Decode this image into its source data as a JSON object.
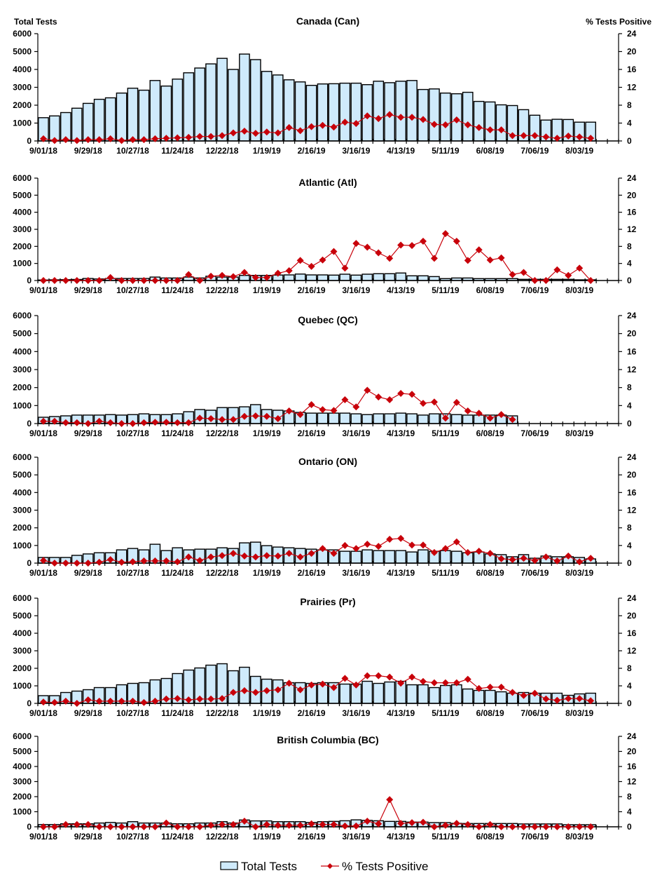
{
  "chart_data": [
    {
      "type": "bar+line",
      "title": "Canada (Can)",
      "ylabel_left": "Total Tests",
      "ylabel_right": "% Tests Positive",
      "ylim_left": [
        0,
        6000
      ],
      "ylim_right": [
        0,
        24
      ],
      "y_ticks_left": [
        "0",
        "1000",
        "2000",
        "3000",
        "4000",
        "5000",
        "6000"
      ],
      "y_ticks_right": [
        "0",
        "4",
        "8",
        "12",
        "16",
        "20",
        "24"
      ],
      "x_tick_labels": [
        "9/01/18",
        "9/29/18",
        "10/27/18",
        "11/24/18",
        "12/22/18",
        "1/19/19",
        "2/16/19",
        "3/16/19",
        "4/13/19",
        "5/11/19",
        "6/08/19",
        "7/06/19",
        "8/03/19"
      ],
      "series": [
        {
          "name": "Total Tests",
          "type": "bar",
          "values": [
            1300,
            1400,
            1590,
            1830,
            2100,
            2330,
            2410,
            2680,
            2950,
            2840,
            3380,
            3070,
            3460,
            3810,
            4080,
            4310,
            4620,
            4000,
            4860,
            4550,
            3890,
            3690,
            3420,
            3300,
            3110,
            3190,
            3200,
            3230,
            3230,
            3150,
            3340,
            3260,
            3340,
            3380,
            2880,
            2910,
            2680,
            2640,
            2720,
            2210,
            2180,
            2020,
            1980,
            1750,
            1440,
            1170,
            1210,
            1200,
            1050,
            1050
          ]
        },
        {
          "name": "% Tests Positive",
          "type": "line",
          "values": [
            0.5,
            0.1,
            0.3,
            0.1,
            0.3,
            0.3,
            0.5,
            0.1,
            0.3,
            0.3,
            0.5,
            0.6,
            0.7,
            0.8,
            1.0,
            1.0,
            1.2,
            1.8,
            2.2,
            1.7,
            2.0,
            1.8,
            3.0,
            2.3,
            3.2,
            3.5,
            3.1,
            4.2,
            3.9,
            5.6,
            5.0,
            5.9,
            5.3,
            5.3,
            4.8,
            3.7,
            3.6,
            4.7,
            3.6,
            3.0,
            2.5,
            2.5,
            1.2,
            1.2,
            1.2,
            0.9,
            0.6,
            1.1,
            0.9,
            0.6
          ]
        }
      ]
    },
    {
      "type": "bar+line",
      "title": "Atlantic (Atl)",
      "ylim_left": [
        0,
        6000
      ],
      "ylim_right": [
        0,
        24
      ],
      "y_ticks_left": [
        "0",
        "1000",
        "2000",
        "3000",
        "4000",
        "5000",
        "6000"
      ],
      "y_ticks_right": [
        "0",
        "4",
        "8",
        "12",
        "16",
        "20",
        "24"
      ],
      "x_tick_labels": [
        "9/01/18",
        "9/29/18",
        "10/27/18",
        "11/24/18",
        "12/22/18",
        "1/19/19",
        "2/16/19",
        "3/16/19",
        "4/13/19",
        "5/11/19",
        "6/08/19",
        "7/06/19",
        "8/03/19"
      ],
      "series": [
        {
          "name": "Total Tests",
          "type": "bar",
          "values": [
            30,
            40,
            50,
            60,
            120,
            90,
            120,
            120,
            120,
            120,
            200,
            150,
            150,
            200,
            150,
            250,
            200,
            200,
            300,
            300,
            300,
            320,
            330,
            380,
            330,
            330,
            315,
            370,
            315,
            370,
            400,
            400,
            440,
            275,
            275,
            230,
            110,
            150,
            150,
            110,
            110,
            110,
            110,
            70,
            70,
            70,
            70,
            70,
            40,
            40
          ]
        },
        {
          "name": "% Tests Positive",
          "type": "line",
          "values": [
            0,
            0,
            0,
            0,
            0,
            0,
            0.7,
            0,
            0,
            0,
            0,
            0,
            0,
            1.4,
            0,
            1.0,
            1.2,
            0.9,
            1.9,
            0.7,
            0.7,
            1.7,
            2.3,
            4.7,
            3.3,
            4.8,
            6.8,
            2.9,
            8.7,
            7.8,
            6.5,
            5.2,
            8.3,
            8.2,
            9.2,
            5.2,
            11.0,
            9.2,
            4.7,
            7.2,
            4.8,
            5.3,
            1.4,
            1.9,
            0,
            0,
            2.5,
            1.2,
            2.9,
            0
          ]
        }
      ]
    },
    {
      "type": "bar+line",
      "title": "Quebec (QC)",
      "ylim_left": [
        0,
        6000
      ],
      "ylim_right": [
        0,
        24
      ],
      "y_ticks_left": [
        "0",
        "1000",
        "2000",
        "3000",
        "4000",
        "5000",
        "6000"
      ],
      "y_ticks_right": [
        "0",
        "4",
        "8",
        "12",
        "16",
        "20",
        "24"
      ],
      "x_tick_labels": [
        "9/01/18",
        "9/29/18",
        "10/27/18",
        "11/24/18",
        "12/22/18",
        "1/19/19",
        "2/16/19",
        "3/16/19",
        "4/13/19",
        "5/11/19",
        "6/08/19",
        "7/06/19",
        "8/03/19"
      ],
      "series": [
        {
          "name": "Total Tests",
          "type": "bar",
          "values": [
            350,
            390,
            430,
            470,
            470,
            470,
            500,
            470,
            500,
            540,
            500,
            500,
            540,
            660,
            780,
            740,
            890,
            890,
            930,
            1050,
            780,
            740,
            700,
            620,
            580,
            580,
            580,
            580,
            540,
            500,
            540,
            540,
            580,
            540,
            470,
            540,
            540,
            500,
            470,
            470,
            470,
            470,
            430,
            null,
            null,
            null,
            null,
            null,
            null,
            null
          ]
        },
        {
          "name": "% Tests Positive",
          "type": "line",
          "values": [
            0.5,
            0.5,
            0.2,
            0.2,
            0,
            0.5,
            0.2,
            0,
            0,
            0.2,
            0.3,
            0.3,
            0.2,
            0.2,
            1.2,
            1.1,
            0.9,
            0.9,
            1.6,
            1.7,
            1.6,
            1.1,
            2.8,
            2.0,
            4.2,
            3.1,
            2.9,
            5.3,
            3.7,
            7.4,
            5.9,
            5.3,
            6.7,
            6.5,
            4.5,
            4.8,
            1.2,
            4.7,
            2.8,
            2.3,
            1.2,
            2.0,
            0.9,
            null,
            null,
            null,
            null,
            null,
            null,
            null
          ]
        }
      ]
    },
    {
      "type": "bar+line",
      "title": "Ontario (ON)",
      "ylim_left": [
        0,
        6000
      ],
      "ylim_right": [
        0,
        24
      ],
      "y_ticks_left": [
        "0",
        "1000",
        "2000",
        "3000",
        "4000",
        "5000",
        "6000"
      ],
      "y_ticks_right": [
        "0",
        "4",
        "8",
        "12",
        "16",
        "20",
        "24"
      ],
      "x_tick_labels": [
        "9/01/18",
        "9/29/18",
        "10/27/18",
        "11/24/18",
        "12/22/18",
        "1/19/19",
        "2/16/19",
        "3/16/19",
        "4/13/19",
        "5/11/19",
        "6/08/19",
        "7/06/19",
        "8/03/19"
      ],
      "series": [
        {
          "name": "Total Tests",
          "type": "bar",
          "values": [
            320,
            320,
            320,
            440,
            520,
            590,
            590,
            750,
            830,
            750,
            1070,
            710,
            870,
            750,
            790,
            790,
            870,
            830,
            1150,
            1190,
            990,
            910,
            870,
            830,
            790,
            750,
            750,
            670,
            670,
            750,
            710,
            710,
            710,
            630,
            750,
            670,
            710,
            670,
            590,
            630,
            520,
            480,
            360,
            480,
            280,
            400,
            360,
            360,
            320,
            240
          ]
        },
        {
          "name": "% Tests Positive",
          "type": "line",
          "values": [
            0.6,
            0,
            0,
            0,
            0,
            0.2,
            0.8,
            0.2,
            0.3,
            0.5,
            0.5,
            0.5,
            0.3,
            1.4,
            0.6,
            1.4,
            1.7,
            2.2,
            1.6,
            1.4,
            1.7,
            1.6,
            2.2,
            1.4,
            2.2,
            3.3,
            2.2,
            4.0,
            3.3,
            4.3,
            3.8,
            5.4,
            5.6,
            4.1,
            4.1,
            2.4,
            3.3,
            4.8,
            2.4,
            2.7,
            2.2,
            1.0,
            0.8,
            1.1,
            0.6,
            1.4,
            0.5,
            1.6,
            0.3,
            1.1
          ]
        }
      ]
    },
    {
      "type": "bar+line",
      "title": "Prairies (Pr)",
      "ylim_left": [
        0,
        6000
      ],
      "ylim_right": [
        0,
        24
      ],
      "y_ticks_left": [
        "0",
        "1000",
        "2000",
        "3000",
        "4000",
        "5000",
        "6000"
      ],
      "y_ticks_right": [
        "0",
        "4",
        "8",
        "12",
        "16",
        "20",
        "24"
      ],
      "x_tick_labels": [
        "9/01/18",
        "9/29/18",
        "10/27/18",
        "11/24/18",
        "12/22/18",
        "1/19/19",
        "2/16/19",
        "3/16/19",
        "4/13/19",
        "5/11/19",
        "6/08/19",
        "7/06/19",
        "8/03/19"
      ],
      "series": [
        {
          "name": "Total Tests",
          "type": "bar",
          "values": [
            440,
            440,
            620,
            700,
            780,
            900,
            900,
            1060,
            1140,
            1180,
            1340,
            1420,
            1700,
            1900,
            2020,
            2180,
            2260,
            1860,
            2060,
            1540,
            1380,
            1340,
            1180,
            1180,
            1140,
            1180,
            1180,
            1100,
            1100,
            1260,
            1140,
            1220,
            1260,
            1060,
            1060,
            900,
            1020,
            1060,
            820,
            740,
            740,
            660,
            580,
            620,
            580,
            580,
            580,
            460,
            540,
            580
          ]
        },
        {
          "name": "% Tests Positive",
          "type": "line",
          "values": [
            0.3,
            0.2,
            0.5,
            0,
            0.8,
            0.5,
            0.5,
            0.5,
            0.5,
            0.2,
            0.5,
            1.0,
            1.1,
            0.8,
            1.0,
            1.0,
            1.1,
            2.5,
            2.9,
            2.5,
            2.9,
            3.1,
            4.6,
            3.1,
            4.2,
            4.4,
            3.6,
            5.7,
            4.2,
            6.3,
            6.3,
            6.0,
            4.6,
            6.0,
            5.0,
            4.7,
            4.7,
            4.7,
            5.5,
            3.4,
            3.7,
            3.7,
            2.5,
            1.8,
            2.3,
            1.0,
            0.7,
            1.1,
            1.1,
            0.6
          ]
        }
      ]
    },
    {
      "type": "bar+line",
      "title": "British Columbia (BC)",
      "ylim_left": [
        0,
        6000
      ],
      "ylim_right": [
        0,
        24
      ],
      "y_ticks_left": [
        "0",
        "1000",
        "2000",
        "3000",
        "4000",
        "5000",
        "6000"
      ],
      "y_ticks_right": [
        "0",
        "4",
        "8",
        "12",
        "16",
        "20",
        "24"
      ],
      "x_tick_labels": [
        "9/01/18",
        "9/29/18",
        "10/27/18",
        "11/24/18",
        "12/22/18",
        "1/19/19",
        "2/16/19",
        "3/16/19",
        "4/13/19",
        "5/11/19",
        "6/08/19",
        "7/06/19",
        "8/03/19"
      ],
      "series": [
        {
          "name": "Total Tests",
          "type": "bar",
          "values": [
            150,
            150,
            200,
            200,
            200,
            250,
            290,
            250,
            340,
            250,
            250,
            250,
            200,
            200,
            250,
            250,
            340,
            250,
            450,
            390,
            390,
            340,
            340,
            340,
            290,
            340,
            360,
            400,
            460,
            430,
            400,
            360,
            360,
            310,
            310,
            280,
            280,
            230,
            220,
            220,
            220,
            220,
            220,
            190,
            190,
            190,
            190,
            140,
            140,
            140
          ]
        },
        {
          "name": "% Tests Positive",
          "type": "line",
          "values": [
            0,
            0,
            0.6,
            0.6,
            0.6,
            0,
            0,
            0,
            0,
            0,
            0,
            1.0,
            0,
            0,
            0,
            0.4,
            0.6,
            0.6,
            1.5,
            0,
            0.6,
            0.4,
            0.4,
            0.4,
            0.8,
            0.6,
            0.6,
            0.2,
            0.2,
            1.5,
            0.8,
            7.2,
            0.9,
            1.1,
            1.2,
            0,
            0.4,
            0.9,
            0.6,
            0,
            0.6,
            0,
            0,
            0,
            0,
            0,
            0,
            0,
            0,
            0
          ]
        }
      ]
    }
  ],
  "legend": {
    "position": "bottom-center",
    "bar_label": "Total Tests",
    "line_label": "% Tests Positive"
  },
  "colors": {
    "bar_fill": "#cfeafb",
    "bar_stroke": "#000000",
    "line": "#c8000a"
  }
}
